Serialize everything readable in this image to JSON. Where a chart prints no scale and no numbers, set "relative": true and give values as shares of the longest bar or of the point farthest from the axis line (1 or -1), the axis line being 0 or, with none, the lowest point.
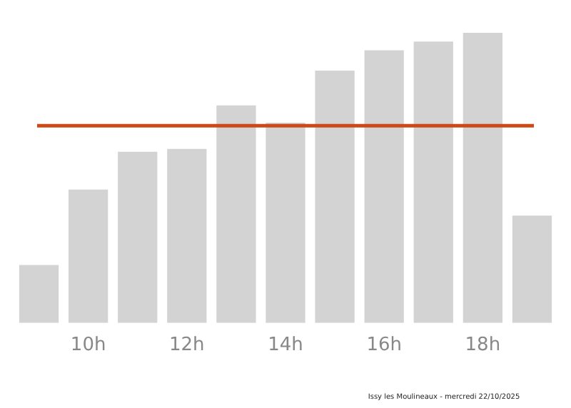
{
  "chart_data": {
    "type": "bar",
    "relative": true,
    "categories": [
      null,
      "10h",
      null,
      "12h",
      null,
      "14h",
      null,
      "16h",
      null,
      "18h",
      null
    ],
    "values": [
      0.2,
      0.46,
      0.59,
      0.6,
      0.75,
      0.69,
      0.87,
      0.94,
      0.97,
      1,
      0.37
    ],
    "color": "#d3d3d3",
    "ref_lines": [
      {
        "axis": "y",
        "value": 0.68,
        "color": "#cc4a1a",
        "line_style": "solid"
      }
    ],
    "grid": false,
    "legend": false,
    "annotations": [
      "Issy les Moulineaux - mercredi 22/10/2025"
    ]
  }
}
